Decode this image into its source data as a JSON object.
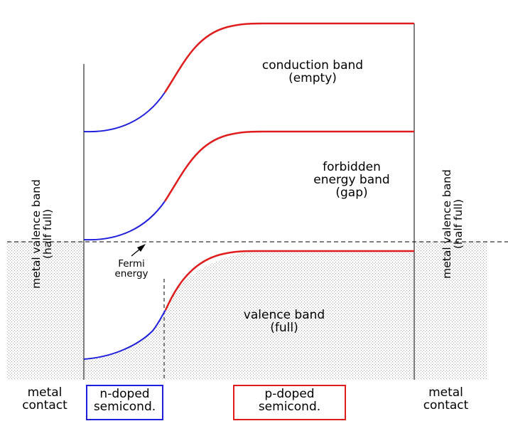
{
  "regions": {
    "left_metal": {
      "label": [
        "metal valence band",
        "(half full)"
      ],
      "bottom": [
        "metal",
        "contact"
      ]
    },
    "right_metal": {
      "label": [
        "metal valence band",
        "(half full)"
      ],
      "bottom": [
        "metal",
        "contact"
      ]
    },
    "n_doped": {
      "label": [
        "n-doped",
        "semicond."
      ],
      "color": "#1f1fdc"
    },
    "p_doped": {
      "label": [
        "p-doped",
        "semicond."
      ],
      "color": "#e01c1c"
    }
  },
  "bands": {
    "conduction": [
      "conduction band",
      "(empty)"
    ],
    "gap": [
      "forbidden",
      "energy band",
      "(gap)"
    ],
    "valence": [
      "valence band",
      "(full)"
    ]
  },
  "fermi": [
    "Fermi",
    "energy"
  ],
  "colors": {
    "n_curve": "#1f1fdc",
    "p_curve": "#e01c1c",
    "stipple": "#9a9a9a",
    "line": "#000000"
  }
}
